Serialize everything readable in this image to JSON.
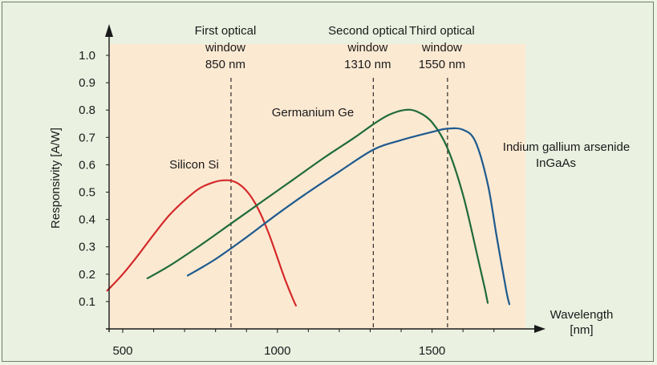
{
  "chart_data": {
    "type": "line",
    "xlabel_line1": "Wavelength",
    "xlabel_line2": "[nm]",
    "ylabel": "Responsivity  [A/W]",
    "xlim": [
      450,
      1780
    ],
    "ylim": [
      0,
      1.0
    ],
    "xticks": [
      500,
      1000,
      1500
    ],
    "yticks": [
      0.1,
      0.2,
      0.3,
      0.4,
      0.5,
      0.6,
      0.7,
      0.8,
      0.9,
      1.0
    ],
    "series": [
      {
        "name": "Silicon Si",
        "color": "#d42a2a",
        "x": [
          450,
          500,
          550,
          600,
          650,
          700,
          750,
          800,
          825,
          850,
          875,
          900,
          925,
          950,
          975,
          1000,
          1025,
          1050,
          1060
        ],
        "y": [
          0.14,
          0.2,
          0.27,
          0.345,
          0.415,
          0.47,
          0.515,
          0.538,
          0.543,
          0.542,
          0.53,
          0.505,
          0.465,
          0.41,
          0.34,
          0.26,
          0.18,
          0.11,
          0.085
        ]
      },
      {
        "name": "Germanium Ge",
        "color": "#1f6b3a",
        "x": [
          580,
          650,
          750,
          850,
          950,
          1050,
          1150,
          1250,
          1310,
          1360,
          1410,
          1450,
          1500,
          1550,
          1600,
          1650,
          1670,
          1680
        ],
        "y": [
          0.185,
          0.23,
          0.305,
          0.385,
          0.465,
          0.545,
          0.625,
          0.7,
          0.748,
          0.782,
          0.8,
          0.795,
          0.755,
          0.66,
          0.49,
          0.25,
          0.15,
          0.095
        ]
      },
      {
        "name": "Indium gallium arsenide InGaAs",
        "color": "#1d5a8e",
        "x": [
          710,
          800,
          900,
          1000,
          1100,
          1200,
          1310,
          1400,
          1500,
          1550,
          1600,
          1640,
          1680,
          1710,
          1740,
          1750
        ],
        "y": [
          0.195,
          0.255,
          0.335,
          0.42,
          0.5,
          0.575,
          0.655,
          0.69,
          0.72,
          0.732,
          0.728,
          0.685,
          0.53,
          0.33,
          0.14,
          0.09
        ]
      }
    ],
    "series_labels": {
      "silicon": "Silicon Si",
      "germanium": "Germanium Ge",
      "ingaas_line1": "Indium gallium arsenide",
      "ingaas_line2": "InGaAs"
    },
    "windows": [
      {
        "x": 850,
        "line1": "First optical",
        "line2": "window",
        "line3": "850 nm"
      },
      {
        "x": 1310,
        "line1": "Second optical",
        "line2": "window",
        "line3": "1310 nm"
      },
      {
        "x": 1550,
        "line1": "Third optical",
        "line2": "window",
        "line3": "1550 nm"
      }
    ],
    "colors": {
      "plot_background": "#fce9d2",
      "frame_background": "#eaf1e1"
    }
  }
}
